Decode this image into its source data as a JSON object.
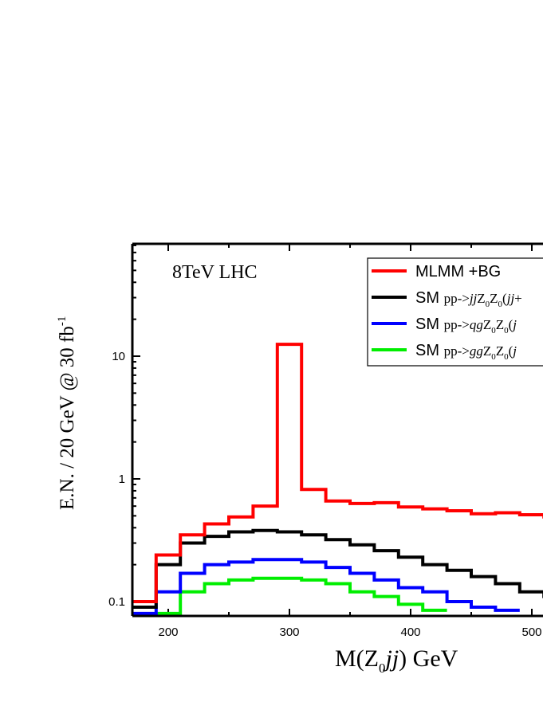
{
  "chart_data": {
    "type": "line",
    "step": true,
    "annotation": "8TeV LHC",
    "xlabel": "M(Z0jj)  GeV",
    "ylabel": "E.N. / 20 GeV @ 30 fb-1",
    "xlim": [
      165,
      520
    ],
    "ylim": [
      0.08,
      80
    ],
    "yscale": "log",
    "xticks": [
      200,
      300,
      400,
      500
    ],
    "yticks": [
      0.1,
      1,
      10
    ],
    "ytick_labels": [
      "0.1",
      "1",
      "10"
    ],
    "legend_position": "top-right",
    "series": [
      {
        "name": "MLMM +BG",
        "color": "#ff0000",
        "edges": [
          170,
          190,
          210,
          230,
          250,
          270,
          290,
          310,
          330,
          350,
          370,
          390,
          410,
          430,
          450,
          470,
          490,
          510,
          530
        ],
        "values": [
          0.1,
          0.24,
          0.35,
          0.43,
          0.49,
          0.6,
          12.5,
          0.82,
          0.66,
          0.63,
          0.64,
          0.59,
          0.57,
          0.55,
          0.52,
          0.53,
          0.51,
          0.49
        ]
      },
      {
        "name": "SM pp->jjZ0Z0(jj+",
        "color": "#000000",
        "edges": [
          170,
          190,
          210,
          230,
          250,
          270,
          290,
          310,
          330,
          350,
          370,
          390,
          410,
          430,
          450,
          470,
          490,
          510,
          530
        ],
        "values": [
          0.09,
          0.2,
          0.3,
          0.34,
          0.37,
          0.38,
          0.37,
          0.35,
          0.32,
          0.29,
          0.26,
          0.23,
          0.2,
          0.18,
          0.16,
          0.14,
          0.12,
          0.11
        ]
      },
      {
        "name": "SM pp->qgZ0Z0(j",
        "color": "#0000ff",
        "edges": [
          170,
          190,
          210,
          230,
          250,
          270,
          290,
          310,
          330,
          350,
          370,
          390,
          410,
          430,
          450,
          470,
          490
        ],
        "values": [
          0.08,
          0.12,
          0.17,
          0.2,
          0.21,
          0.22,
          0.22,
          0.21,
          0.19,
          0.17,
          0.15,
          0.13,
          0.12,
          0.1,
          0.09,
          0.085
        ]
      },
      {
        "name": "SM pp->ggZ0Z0(j",
        "color": "#00ee00",
        "edges": [
          190,
          210,
          230,
          250,
          270,
          290,
          310,
          330,
          350,
          370,
          390,
          410,
          430
        ],
        "values": [
          0.08,
          0.12,
          0.14,
          0.15,
          0.155,
          0.155,
          0.15,
          0.14,
          0.12,
          0.11,
          0.095,
          0.085
        ]
      }
    ]
  }
}
